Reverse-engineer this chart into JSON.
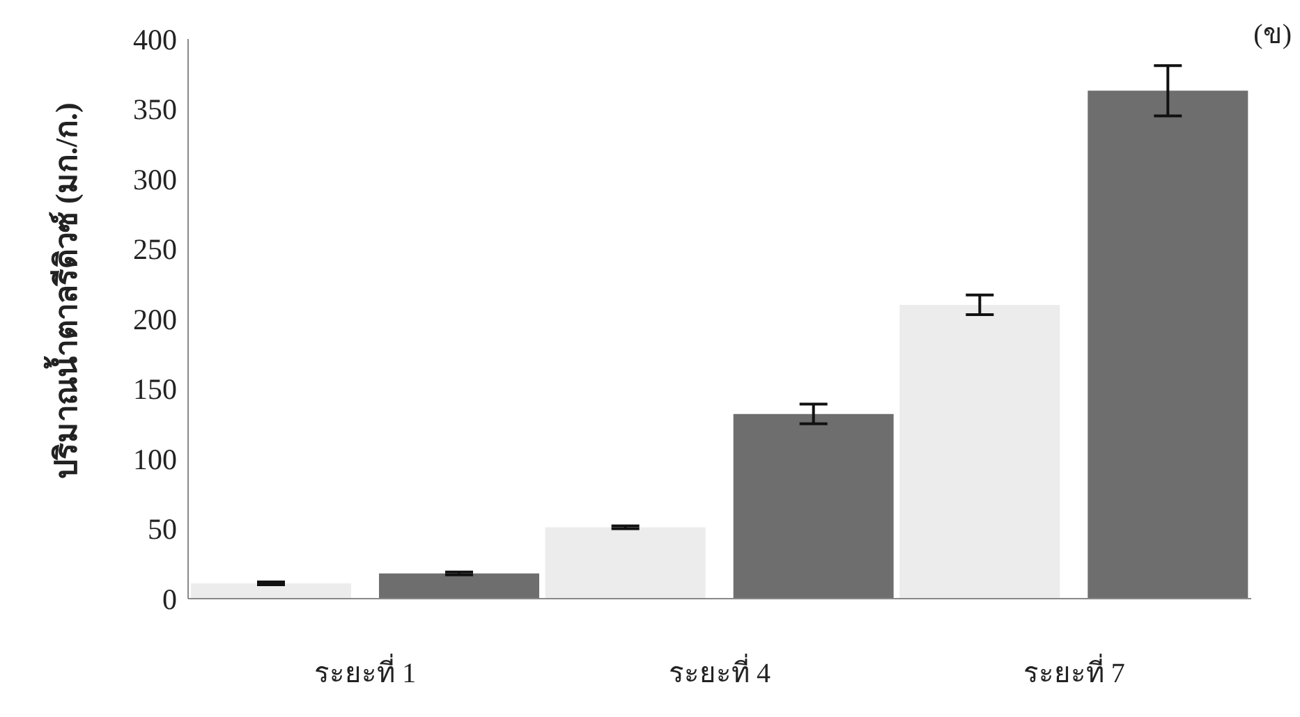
{
  "chart_data": {
    "type": "bar",
    "ylabel": "ปริมาณน้ำตาลรีดิวซ์ (มก./ก.)",
    "annotations": [
      "(ข)"
    ],
    "categories": [
      "ระยะที่ 1",
      "ระยะที่ 4",
      "ระยะที่ 7"
    ],
    "series": [
      {
        "color": "#ececec",
        "values": [
          11,
          51,
          210
        ],
        "errors": [
          1,
          1,
          7
        ]
      },
      {
        "color": "#6e6e6e",
        "values": [
          18,
          132,
          363
        ],
        "errors": [
          1,
          7,
          18
        ]
      }
    ],
    "ylim": [
      0,
      400
    ],
    "yticks": [
      0,
      50,
      100,
      150,
      200,
      250,
      300,
      350,
      400
    ],
    "grid": false,
    "legend": false
  }
}
